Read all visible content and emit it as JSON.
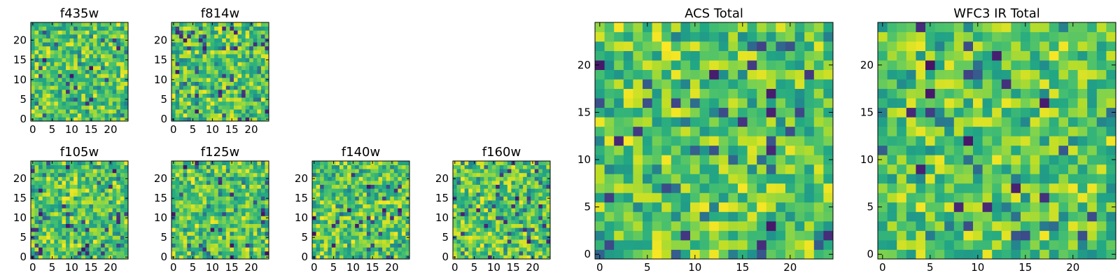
{
  "chart_data": [
    {
      "type": "heatmap",
      "title": "f435w",
      "grid_size": 25,
      "xlim": [
        0,
        25
      ],
      "ylim": [
        0,
        25
      ],
      "xticks": [
        0,
        5,
        10,
        15,
        20
      ],
      "yticks": [
        0,
        5,
        10,
        15,
        20
      ],
      "colormap": "viridis",
      "seed": 11
    },
    {
      "type": "heatmap",
      "title": "f814w",
      "grid_size": 25,
      "xlim": [
        0,
        25
      ],
      "ylim": [
        0,
        25
      ],
      "xticks": [
        0,
        5,
        10,
        15,
        20
      ],
      "yticks": [
        0,
        5,
        10,
        15,
        20
      ],
      "colormap": "viridis",
      "seed": 23
    },
    {
      "type": "heatmap",
      "title": "f105w",
      "grid_size": 25,
      "xlim": [
        0,
        25
      ],
      "ylim": [
        0,
        25
      ],
      "xticks": [
        0,
        5,
        10,
        15,
        20
      ],
      "yticks": [
        0,
        5,
        10,
        15,
        20
      ],
      "colormap": "viridis",
      "seed": 37
    },
    {
      "type": "heatmap",
      "title": "f125w",
      "grid_size": 25,
      "xlim": [
        0,
        25
      ],
      "ylim": [
        0,
        25
      ],
      "xticks": [
        0,
        5,
        10,
        15,
        20
      ],
      "yticks": [
        0,
        5,
        10,
        15,
        20
      ],
      "colormap": "viridis",
      "seed": 41
    },
    {
      "type": "heatmap",
      "title": "f140w",
      "grid_size": 25,
      "xlim": [
        0,
        25
      ],
      "ylim": [
        0,
        25
      ],
      "xticks": [
        0,
        5,
        10,
        15,
        20
      ],
      "yticks": [
        0,
        5,
        10,
        15,
        20
      ],
      "colormap": "viridis",
      "seed": 53
    },
    {
      "type": "heatmap",
      "title": "f160w",
      "grid_size": 25,
      "xlim": [
        0,
        25
      ],
      "ylim": [
        0,
        25
      ],
      "xticks": [
        0,
        5,
        10,
        15,
        20
      ],
      "yticks": [
        0,
        5,
        10,
        15,
        20
      ],
      "colormap": "viridis",
      "seed": 67
    },
    {
      "type": "heatmap",
      "title": "ACS Total",
      "grid_size": 25,
      "xlim": [
        0,
        25
      ],
      "ylim": [
        0,
        25
      ],
      "xticks": [
        0,
        5,
        10,
        15,
        20
      ],
      "yticks": [
        0,
        5,
        10,
        15,
        20
      ],
      "colormap": "viridis",
      "seed": 79
    },
    {
      "type": "heatmap",
      "title": "WFC3 IR Total",
      "grid_size": 25,
      "xlim": [
        0,
        25
      ],
      "ylim": [
        0,
        25
      ],
      "xticks": [
        0,
        5,
        10,
        15,
        20
      ],
      "yticks": [
        0,
        5,
        10,
        15,
        20
      ],
      "colormap": "viridis",
      "seed": 97
    }
  ]
}
